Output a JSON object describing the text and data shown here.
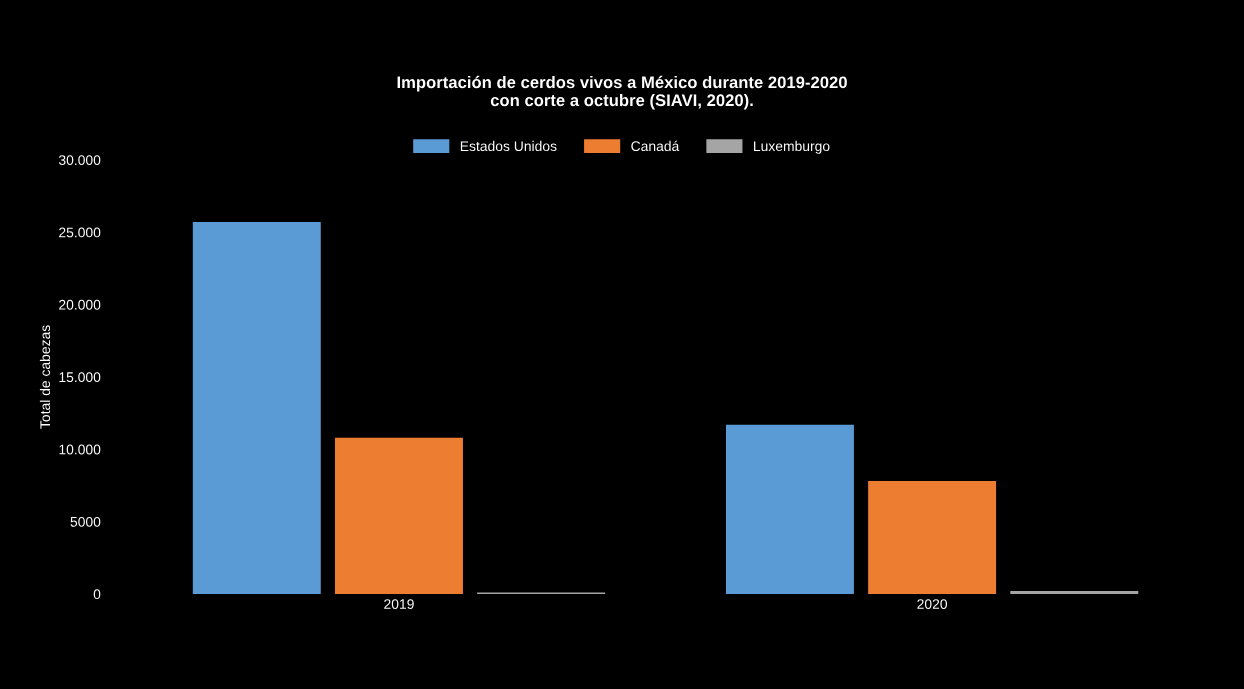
{
  "chart_data": {
    "type": "bar",
    "title": "Importación de cerdos vivos a México durante 2019-2020\ncon corte a octubre (SIAVI, 2020).",
    "ylabel": "Total de cabezas",
    "categories": [
      "2019",
      "2020"
    ],
    "series": [
      {
        "name": "Estados Unidos",
        "color": "#5b9bd5",
        "values": [
          25700,
          11700
        ]
      },
      {
        "name": "Canadá",
        "color": "#ed7d31",
        "values": [
          10800,
          7800
        ]
      },
      {
        "name": "Luxemburgo",
        "color": "#a5a5a5",
        "values": [
          100,
          200
        ]
      }
    ],
    "ylim": [
      0,
      30000
    ],
    "yticks": [
      0,
      5000,
      {
        "value": 10000,
        "label": "10.000"
      },
      {
        "value": 15000,
        "label": "15.000"
      },
      {
        "value": 20000,
        "label": "20.000"
      },
      {
        "value": 25000,
        "label": "25.000"
      },
      {
        "value": 30000,
        "label": "30.000"
      }
    ],
    "grid": false,
    "legend": "top"
  }
}
